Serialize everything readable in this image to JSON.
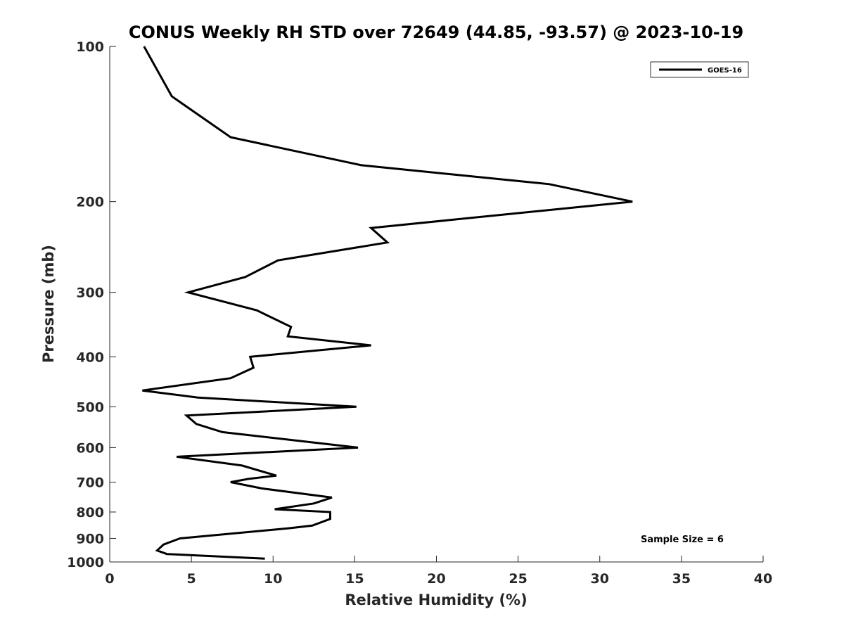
{
  "chart_data": {
    "type": "line",
    "title": "CONUS Weekly RH STD over 72649 (44.85, -93.57) @ 2023-10-19",
    "xlabel": "Relative Humidity (%)",
    "ylabel": "Pressure (mb)",
    "xlim": [
      0,
      40
    ],
    "ylim": [
      100,
      1000
    ],
    "yscale": "log",
    "yreversed": true,
    "xticks": [
      0,
      5,
      10,
      15,
      20,
      25,
      30,
      35,
      40
    ],
    "yticks": [
      100,
      200,
      300,
      400,
      500,
      600,
      700,
      800,
      900,
      1000
    ],
    "grid": false,
    "legend_position": "top-right",
    "series": [
      {
        "name": "GOES-16",
        "color": "#000000",
        "x": [
          2.1,
          3.8,
          7.4,
          15.4,
          26.9,
          32.0,
          16.0,
          17.0,
          10.3,
          8.3,
          4.8,
          9.0,
          11.1,
          10.9,
          16.0,
          8.6,
          8.8,
          7.4,
          2.0,
          5.4,
          15.1,
          4.7,
          5.3,
          6.9,
          15.2,
          4.1,
          8.1,
          10.2,
          8.5,
          7.4,
          9.3,
          13.6,
          12.5,
          10.1,
          13.5,
          13.5,
          12.4,
          11.0,
          4.3,
          3.3,
          2.9,
          3.5,
          9.5
        ],
        "y": [
          100,
          125,
          150,
          170,
          185,
          200,
          225,
          240,
          260,
          280,
          300,
          325,
          350,
          365,
          380,
          400,
          420,
          440,
          465,
          480,
          500,
          520,
          540,
          560,
          600,
          625,
          650,
          680,
          690,
          700,
          720,
          750,
          770,
          790,
          800,
          825,
          850,
          860,
          900,
          925,
          950,
          965,
          985
        ]
      }
    ],
    "annotation": "Sample Size = 6"
  }
}
